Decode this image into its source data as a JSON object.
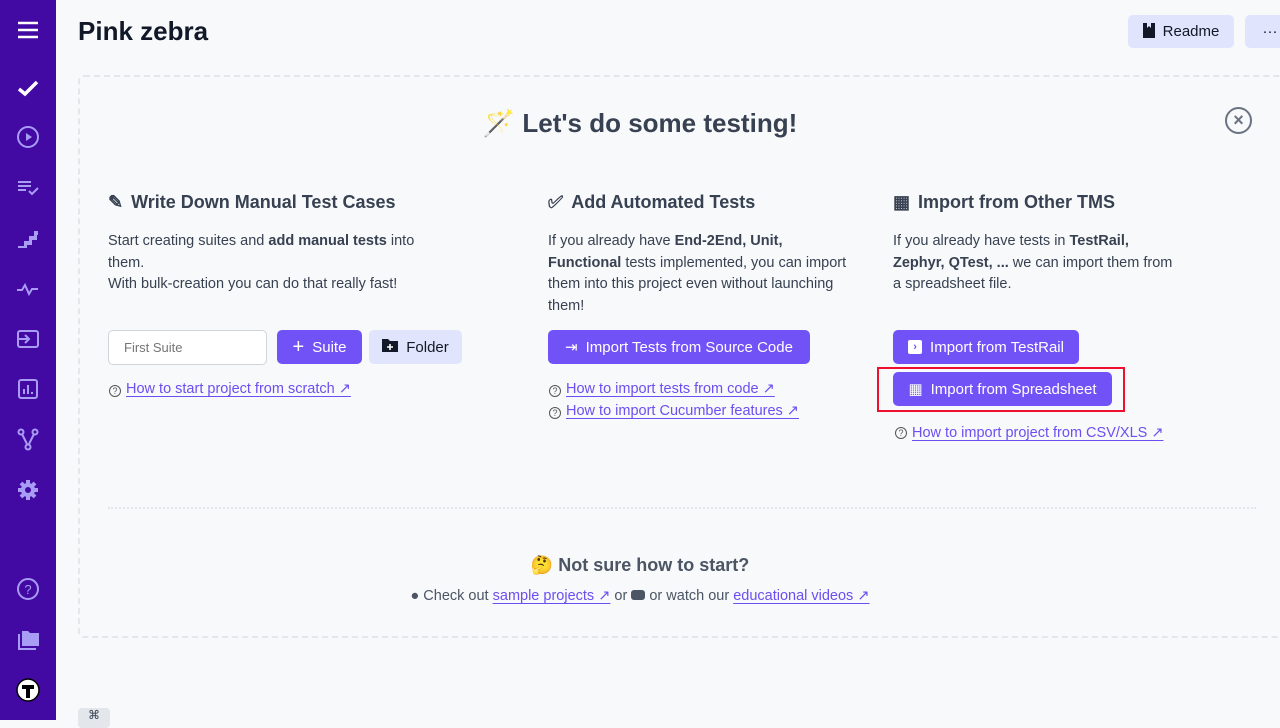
{
  "sidebar": {
    "icons": [
      "menu-icon",
      "check-icon",
      "play-icon",
      "checklist-icon",
      "steps-icon",
      "pulse-icon",
      "import-icon",
      "analytics-icon",
      "branch-icon",
      "gear-icon",
      "help-icon",
      "folder-icon",
      "avatar"
    ]
  },
  "header": {
    "title": "Pink zebra",
    "readme_label": "Readme",
    "more_label": "···"
  },
  "hero": {
    "emoji": "🪄",
    "title": "Let's do some testing!"
  },
  "columns": [
    {
      "title": "Write Down Manual Test Cases",
      "text_pre": "Start creating suites and ",
      "text_bold": "add manual tests",
      "text_post": " into them.",
      "text2": "With bulk-creation you can do that really fast!",
      "input_placeholder": "First Suite",
      "suite_label": "Suite",
      "folder_label": "Folder",
      "help": "How to start project from scratch  ↗"
    },
    {
      "title": "Add Automated Tests",
      "t1": "If you already have ",
      "b1": "End-2End, Unit, Functional",
      "t2": " tests implemented, you can import them into this project even without launching them!",
      "button": "Import Tests from Source Code",
      "help1": "How to import tests from code  ↗",
      "help2": "How to import Cucumber features  ↗"
    },
    {
      "title": "Import from Other TMS",
      "t1": "If you already have tests in ",
      "b1": "TestRail, Zephyr, QTest, ...",
      "t2": " we can import them from a spreadsheet file.",
      "button1": "Import from TestRail",
      "button2": "Import from Spreadsheet",
      "help": "How to import project from CSV/XLS ↗"
    }
  ],
  "footer": {
    "emoji": "🤔",
    "title": "Not sure how to start?",
    "check_out": "Check out",
    "sample_link": "sample projects  ↗",
    "or": "or",
    "watch": "or watch our",
    "videos_link": "educational videos  ↗"
  },
  "shortcut": "⌘",
  "colors": {
    "sidebar": "#4209a3",
    "primary": "#7152f7",
    "highlight": "#ef1030"
  }
}
